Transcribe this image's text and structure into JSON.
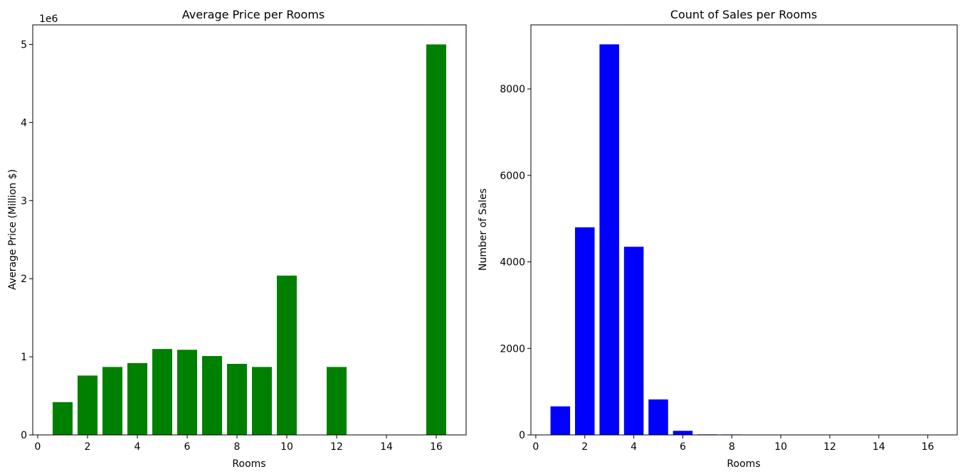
{
  "chart_data": [
    {
      "type": "bar",
      "title": "Average Price per Rooms",
      "xlabel": "Rooms",
      "ylabel": "Average Price (Million $)",
      "y_offset_label": "1e6",
      "x": [
        1,
        2,
        3,
        4,
        5,
        6,
        7,
        8,
        9,
        10,
        12,
        16
      ],
      "values": [
        420000,
        760000,
        870000,
        920000,
        1100000,
        1090000,
        1010000,
        910000,
        870000,
        2040000,
        870000,
        5000000
      ],
      "xlim": [
        -0.2,
        17.2
      ],
      "ylim": [
        0,
        5250000
      ],
      "xticks": [
        0,
        2,
        4,
        6,
        8,
        10,
        12,
        14,
        16
      ],
      "yticks": [
        0,
        1000000,
        2000000,
        3000000,
        4000000,
        5000000
      ],
      "ytick_labels": [
        "0",
        "1",
        "2",
        "3",
        "4",
        "5"
      ],
      "color": "#008000",
      "grid": false
    },
    {
      "type": "bar",
      "title": "Count of Sales per Rooms",
      "xlabel": "Rooms",
      "ylabel": "Number of Sales",
      "x": [
        1,
        2,
        3,
        4,
        5,
        6,
        7,
        8,
        10,
        12,
        16
      ],
      "values": [
        660,
        4800,
        9030,
        4350,
        820,
        95,
        12,
        10,
        1,
        1,
        1
      ],
      "xlim": [
        -0.2,
        17.2
      ],
      "ylim": [
        0,
        9480
      ],
      "xticks": [
        0,
        2,
        4,
        6,
        8,
        10,
        12,
        14,
        16
      ],
      "yticks": [
        0,
        2000,
        4000,
        6000,
        8000
      ],
      "ytick_labels": [
        "0",
        "2000",
        "4000",
        "6000",
        "8000"
      ],
      "color": "#0000ff",
      "grid": false
    }
  ]
}
